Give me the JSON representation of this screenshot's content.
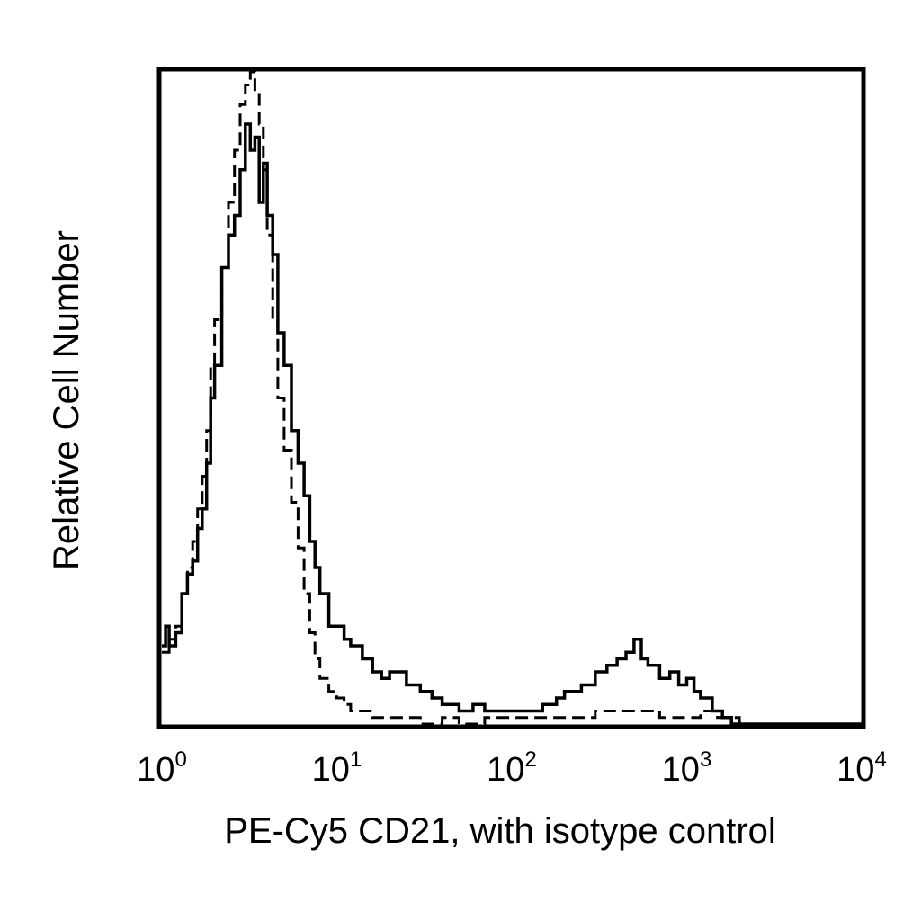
{
  "chart_data": {
    "type": "line",
    "title": "",
    "xlabel": "PE-Cy5 CD21, with isotype control",
    "ylabel": "Relative Cell Number",
    "x_scale": "log",
    "xlim": [
      1,
      10000
    ],
    "ylim": [
      0,
      1
    ],
    "grid": false,
    "legend": "none",
    "x_ticks": [
      {
        "base": "10",
        "exp": "0"
      },
      {
        "base": "10",
        "exp": "1"
      },
      {
        "base": "10",
        "exp": "2"
      },
      {
        "base": "10",
        "exp": "3"
      },
      {
        "base": "10",
        "exp": "4"
      }
    ],
    "series": [
      {
        "style": "solid",
        "color": "#000000",
        "x": [
          1,
          1.05,
          1.1,
          1.2,
          1.3,
          1.4,
          1.5,
          1.6,
          1.7,
          1.8,
          1.9,
          2.0,
          2.2,
          2.4,
          2.6,
          2.8,
          3.0,
          3.2,
          3.4,
          3.6,
          3.8,
          4.0,
          4.3,
          4.6,
          5.0,
          5.5,
          6.0,
          6.5,
          7.0,
          7.5,
          8.0,
          9.0,
          10,
          11,
          12,
          14,
          16,
          18,
          20,
          25,
          30,
          35,
          40,
          50,
          60,
          70,
          80,
          100,
          120,
          150,
          180,
          200,
          250,
          300,
          350,
          400,
          450,
          500,
          550,
          600,
          700,
          800,
          900,
          1000,
          1100,
          1200,
          1400,
          1600,
          1800,
          2000,
          3000,
          5000,
          10000
        ],
        "y": [
          0.12,
          0.15,
          0.12,
          0.14,
          0.2,
          0.23,
          0.25,
          0.3,
          0.33,
          0.4,
          0.5,
          0.55,
          0.7,
          0.75,
          0.78,
          0.85,
          0.92,
          0.88,
          0.9,
          0.8,
          0.86,
          0.78,
          0.72,
          0.6,
          0.55,
          0.45,
          0.4,
          0.35,
          0.28,
          0.24,
          0.2,
          0.15,
          0.15,
          0.13,
          0.12,
          0.1,
          0.08,
          0.07,
          0.08,
          0.06,
          0.05,
          0.04,
          0.03,
          0.02,
          0.03,
          0.02,
          0.02,
          0.02,
          0.02,
          0.03,
          0.04,
          0.05,
          0.06,
          0.08,
          0.09,
          0.1,
          0.11,
          0.13,
          0.1,
          0.09,
          0.07,
          0.08,
          0.06,
          0.07,
          0.05,
          0.04,
          0.02,
          0.01,
          0,
          0,
          0,
          0,
          0
        ]
      },
      {
        "style": "dashed",
        "color": "#000000",
        "x": [
          1,
          1.1,
          1.2,
          1.3,
          1.4,
          1.5,
          1.6,
          1.7,
          1.8,
          1.9,
          2.0,
          2.2,
          2.4,
          2.6,
          2.8,
          3.0,
          3.2,
          3.4,
          3.6,
          3.8,
          4.0,
          4.3,
          4.6,
          5.0,
          5.5,
          6.0,
          6.5,
          7.0,
          7.5,
          8.0,
          9.0,
          10,
          11,
          12,
          14,
          16,
          18,
          20,
          25,
          30,
          40,
          50,
          70,
          100,
          150,
          200,
          300,
          500,
          700,
          1000,
          1200,
          1500,
          2000,
          5000,
          10000
        ],
        "y": [
          0.11,
          0.13,
          0.15,
          0.2,
          0.24,
          0.28,
          0.33,
          0.38,
          0.45,
          0.55,
          0.62,
          0.7,
          0.8,
          0.88,
          0.95,
          0.98,
          1.0,
          0.97,
          0.92,
          0.85,
          0.75,
          0.62,
          0.5,
          0.42,
          0.34,
          0.27,
          0.2,
          0.14,
          0.1,
          0.07,
          0.05,
          0.04,
          0.03,
          0.02,
          0.02,
          0.01,
          0.01,
          0.01,
          0.01,
          0.0,
          0.01,
          0.0,
          0.01,
          0.01,
          0.01,
          0.01,
          0.02,
          0.02,
          0.01,
          0.01,
          0.02,
          0.01,
          0.0,
          0,
          0
        ]
      }
    ]
  }
}
